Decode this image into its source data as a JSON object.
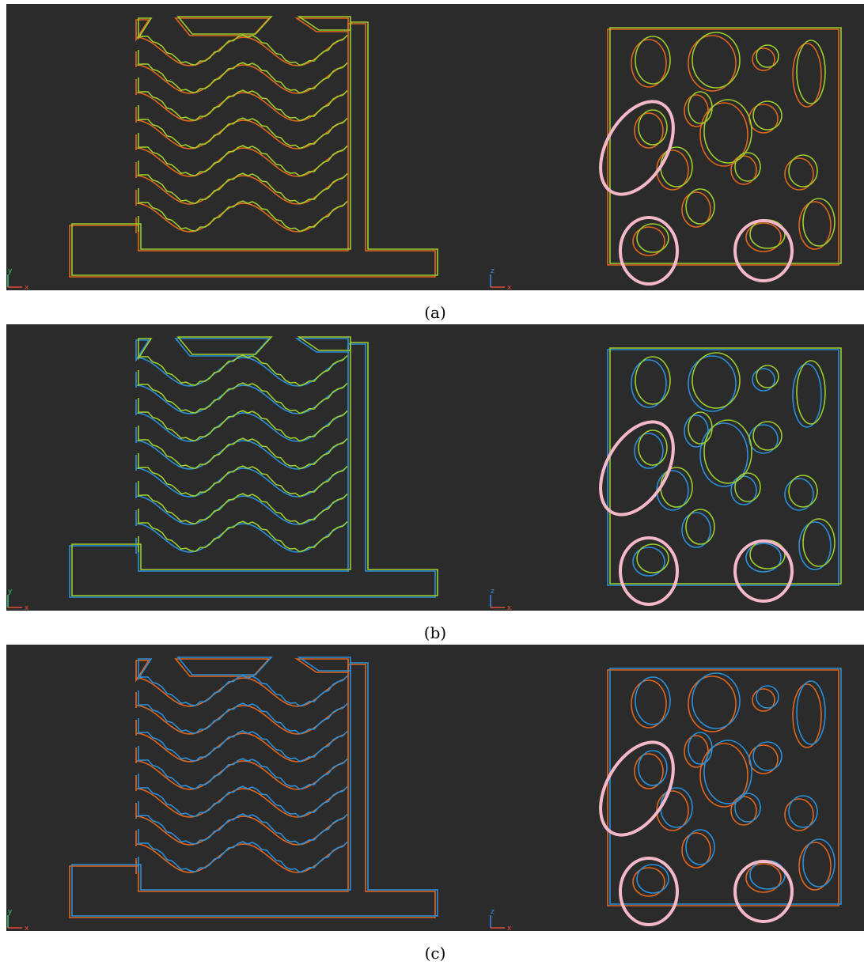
{
  "panels": [
    {
      "caption": "(a)",
      "left_axes": {
        "vertical": "y",
        "horizontal": "x"
      },
      "right_axes": {
        "vertical": "z",
        "horizontal": "x"
      }
    },
    {
      "caption": "(b)",
      "left_axes": {
        "vertical": "y",
        "horizontal": "x"
      },
      "right_axes": {
        "vertical": "z",
        "horizontal": "x"
      }
    },
    {
      "caption": "(c)",
      "left_axes": {
        "vertical": "y",
        "horizontal": "x"
      },
      "right_axes": {
        "vertical": "z",
        "horizontal": "x"
      }
    }
  ]
}
